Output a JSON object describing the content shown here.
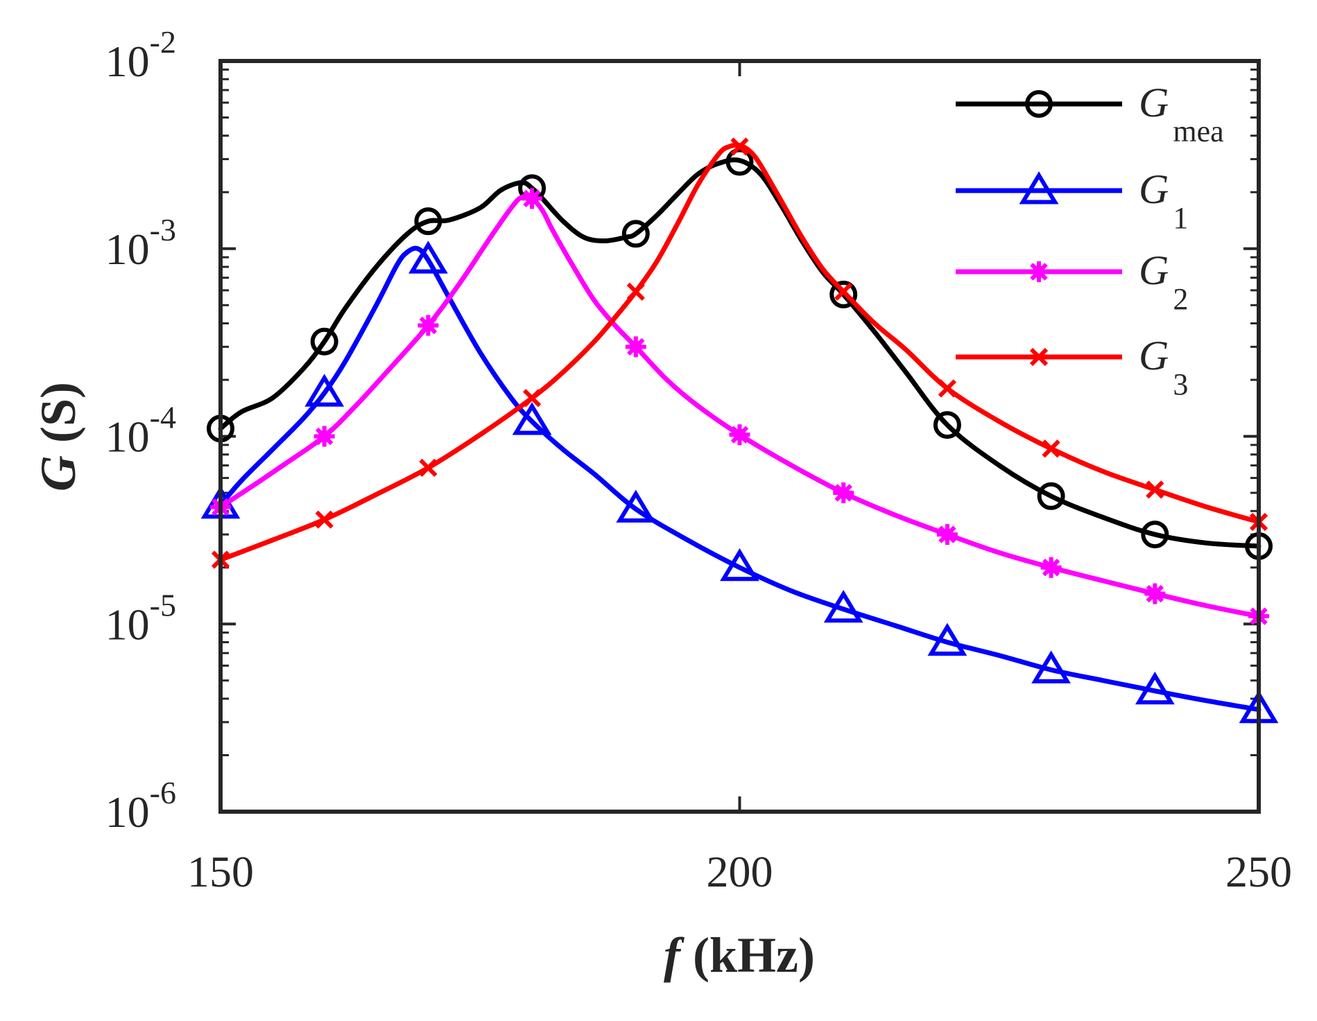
{
  "chart_data": {
    "type": "line",
    "title": "",
    "xlabel": {
      "symbol": "f",
      "unit": " (kHz)"
    },
    "ylabel": {
      "symbol": "G",
      "unit": " (S)"
    },
    "xlim": [
      150,
      250
    ],
    "ylim": [
      1e-06,
      0.01
    ],
    "yscale": "log",
    "x_ticks": [
      150,
      200,
      250
    ],
    "y_ticks": [
      {
        "base": "10",
        "exp": "-6",
        "value": 1e-06
      },
      {
        "base": "10",
        "exp": "-5",
        "value": 1e-05
      },
      {
        "base": "10",
        "exp": "-4",
        "value": 0.0001
      },
      {
        "base": "10",
        "exp": "-3",
        "value": 0.001
      },
      {
        "base": "10",
        "exp": "-2",
        "value": 0.01
      }
    ],
    "legend_position": "top-right",
    "series": [
      {
        "name": "G",
        "sub": "mea",
        "color": "#000000",
        "marker": "circle",
        "markers": {
          "x": [
            150,
            160,
            170,
            180,
            190,
            200,
            210,
            220,
            230,
            240,
            250
          ],
          "y": [
            0.00011,
            0.00032,
            0.0014,
            0.0021,
            0.0012,
            0.0029,
            0.00057,
            0.000115,
            4.8e-05,
            3e-05,
            2.6e-05
          ]
        },
        "curve": {
          "x": [
            150,
            152,
            155,
            158,
            160,
            162,
            165,
            168,
            170,
            172,
            175,
            177,
            179,
            180,
            181,
            183,
            185,
            187,
            189,
            190,
            192,
            194,
            196,
            198,
            200,
            202,
            204,
            206,
            208,
            210,
            213,
            216,
            220,
            225,
            230,
            235,
            240,
            245,
            250
          ],
          "y": [
            0.00011,
            0.000135,
            0.00016,
            0.00023,
            0.00032,
            0.00048,
            0.0008,
            0.0012,
            0.0014,
            0.00142,
            0.00165,
            0.00205,
            0.00225,
            0.0021,
            0.00185,
            0.0014,
            0.00115,
            0.0011,
            0.00115,
            0.0012,
            0.0015,
            0.00195,
            0.0025,
            0.00285,
            0.00295,
            0.0025,
            0.0017,
            0.0011,
            0.00075,
            0.00057,
            0.00036,
            0.00022,
            0.000115,
            7e-05,
            4.8e-05,
            3.7e-05,
            3e-05,
            2.7e-05,
            2.6e-05
          ]
        }
      },
      {
        "name": "G",
        "sub": "1",
        "color": "#0000ff",
        "marker": "triangle",
        "markers": {
          "x": [
            150,
            160,
            170,
            180,
            190,
            200,
            210,
            220,
            230,
            240,
            250
          ],
          "y": [
            4.3e-05,
            0.00017,
            0.00087,
            0.00012,
            4.1e-05,
            2e-05,
            1.2e-05,
            8e-06,
            5.7e-06,
            4.4e-06,
            3.5e-06
          ]
        },
        "curve": {
          "x": [
            150,
            152,
            155,
            158,
            160,
            162,
            165,
            167,
            168,
            169,
            170,
            172,
            175,
            178,
            180,
            183,
            186,
            190,
            195,
            200,
            205,
            210,
            215,
            220,
            225,
            230,
            235,
            240,
            245,
            250
          ],
          "y": [
            4.3e-05,
            5.8e-05,
            8.5e-05,
            0.000125,
            0.00017,
            0.00025,
            0.0005,
            0.00082,
            0.00096,
            0.001,
            0.00087,
            0.00055,
            0.00028,
            0.00016,
            0.00012,
            8.5e-05,
            6.3e-05,
            4.1e-05,
            2.8e-05,
            2e-05,
            1.5e-05,
            1.2e-05,
            9.8e-06,
            8e-06,
            6.8e-06,
            5.7e-06,
            5e-06,
            4.4e-06,
            3.9e-06,
            3.5e-06
          ]
        }
      },
      {
        "name": "G",
        "sub": "2",
        "color": "#ff00ff",
        "marker": "star",
        "markers": {
          "x": [
            150,
            160,
            170,
            180,
            190,
            200,
            210,
            220,
            230,
            240,
            250
          ],
          "y": [
            4.2e-05,
            0.0001,
            0.00039,
            0.00185,
            0.0003,
            0.000102,
            5e-05,
            3e-05,
            2e-05,
            1.45e-05,
            1.1e-05
          ]
        },
        "curve": {
          "x": [
            150,
            153,
            156,
            160,
            163,
            166,
            170,
            173,
            176,
            178,
            179,
            180,
            181,
            182,
            184,
            186,
            188,
            190,
            193,
            196,
            200,
            205,
            210,
            215,
            220,
            225,
            230,
            235,
            240,
            245,
            250
          ],
          "y": [
            4.2e-05,
            5.4e-05,
            7e-05,
            0.0001,
            0.000145,
            0.00022,
            0.00039,
            0.00065,
            0.00115,
            0.00165,
            0.00188,
            0.00185,
            0.0016,
            0.00125,
            0.0008,
            0.00053,
            0.00039,
            0.0003,
            0.0002,
            0.000145,
            0.000102,
            7e-05,
            5e-05,
            3.8e-05,
            3e-05,
            2.4e-05,
            2e-05,
            1.7e-05,
            1.45e-05,
            1.25e-05,
            1.1e-05
          ]
        }
      },
      {
        "name": "G",
        "sub": "3",
        "color": "#ff0000",
        "marker": "x",
        "markers": {
          "x": [
            150,
            160,
            170,
            180,
            190,
            200,
            210,
            220,
            230,
            240,
            250
          ],
          "y": [
            2.2e-05,
            3.6e-05,
            6.8e-05,
            0.00016,
            0.00059,
            0.0035,
            0.00059,
            0.00018,
            8.6e-05,
            5.2e-05,
            3.5e-05
          ]
        },
        "curve": {
          "x": [
            150,
            155,
            160,
            165,
            170,
            175,
            180,
            183,
            186,
            188,
            190,
            192,
            194,
            196,
            198,
            199,
            200,
            201,
            202,
            204,
            206,
            208,
            210,
            213,
            216,
            220,
            225,
            230,
            235,
            240,
            245,
            250
          ],
          "y": [
            2.2e-05,
            2.8e-05,
            3.6e-05,
            4.9e-05,
            6.8e-05,
            0.000102,
            0.00016,
            0.00022,
            0.00032,
            0.00043,
            0.00059,
            0.00085,
            0.00135,
            0.0022,
            0.0032,
            0.0035,
            0.00355,
            0.0033,
            0.0028,
            0.0018,
            0.00115,
            0.00078,
            0.00059,
            0.0004,
            0.00029,
            0.00018,
            0.00012,
            8.6e-05,
            6.5e-05,
            5.2e-05,
            4.2e-05,
            3.5e-05
          ]
        }
      }
    ]
  }
}
